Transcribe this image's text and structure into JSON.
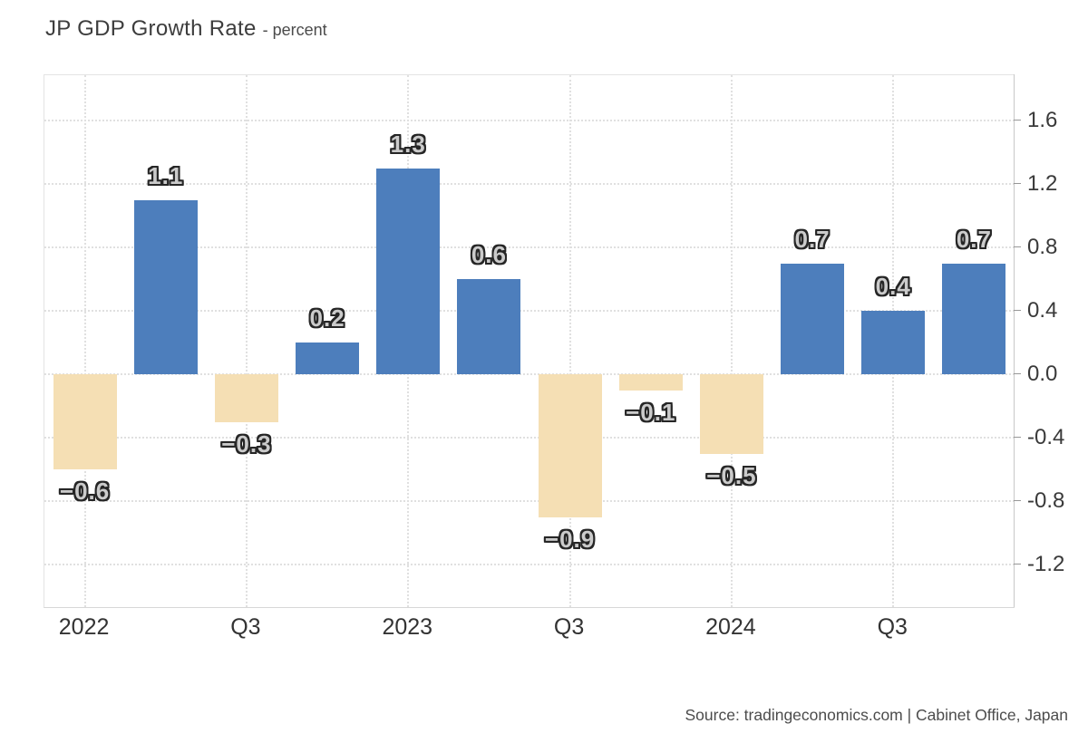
{
  "title": {
    "main": "JP GDP Growth Rate",
    "sub": "- percent"
  },
  "source": "Source: tradingeconomics.com | Cabinet Office, Japan",
  "colors": {
    "positive_bar": "#4d7ebc",
    "negative_bar": "#f5dfb4",
    "grid": "#e0e0e0",
    "axis_line": "#c8c8c8",
    "tick": "#979797",
    "value_label_fill": "#cbcbcb",
    "value_label_outline": "#262626",
    "axis_text": "#3a3a3a"
  },
  "chart_data": {
    "type": "bar",
    "title": "JP GDP Growth Rate",
    "ylabel": "percent",
    "values": [
      -0.6,
      1.1,
      -0.3,
      0.2,
      1.3,
      0.6,
      -0.9,
      -0.1,
      -0.5,
      0.7,
      0.4,
      0.7
    ],
    "bar_labels": [
      "−0.6",
      "1.1",
      "−0.3",
      "0.2",
      "1.3",
      "0.6",
      "−0.9",
      "−0.1",
      "−0.5",
      "0.7",
      "0.4",
      "0.7"
    ],
    "x_tick_labels": [
      "2022",
      "Q3",
      "2023",
      "Q3",
      "2024",
      "Q3"
    ],
    "x_tick_slots": [
      0,
      2,
      4,
      6,
      8,
      10
    ],
    "y_ticks": [
      1.6,
      1.2,
      0.8,
      0.4,
      0.0,
      -0.4,
      -0.8,
      -1.2
    ],
    "y_tick_labels": [
      "1.6",
      "1.2",
      "0.8",
      "0.4",
      "0.0",
      "-0.4",
      "-0.8",
      "-1.2"
    ],
    "ylim": [
      -1.47,
      1.89
    ],
    "grid": "dotted",
    "legend": "none",
    "bar_color_rule": {
      "positive": "#4d7ebc",
      "negative": "#f5dfb4"
    }
  }
}
